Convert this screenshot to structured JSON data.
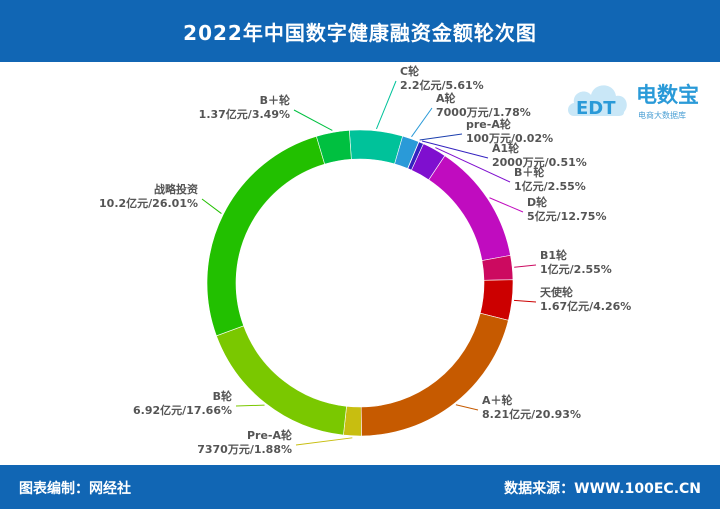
{
  "header": {
    "title": "2022年中国数字健康融资金额轮次图"
  },
  "footer": {
    "left": "图表编制：网经社",
    "right": "数据来源：WWW.100EC.CN"
  },
  "logo": {
    "name": "电数宝",
    "short": "EDT",
    "sub": "电商大数据库"
  },
  "colors": {
    "header_bg": "#1166b4",
    "label": "#555555"
  },
  "chart_data": {
    "type": "pie",
    "donut": true,
    "title": "2022年中国数字健康融资金额轮次图",
    "slices": [
      {
        "name": "C轮",
        "amount": "2.2亿元",
        "percent": 5.61,
        "pct_label": "5.61%",
        "color": "#00c29a"
      },
      {
        "name": "A轮",
        "amount": "7000万元",
        "percent": 1.78,
        "pct_label": "1.78%",
        "color": "#2a9ad8"
      },
      {
        "name": "pre-A轮",
        "amount": "100万元",
        "percent": 0.02,
        "pct_label": "0.02%",
        "color": "#1c3fae"
      },
      {
        "name": "A1轮",
        "amount": "2000万元",
        "percent": 0.51,
        "pct_label": "0.51%",
        "color": "#3523c0"
      },
      {
        "name": "B＋轮",
        "amount": "1亿元",
        "percent": 2.55,
        "pct_label": "2.55%",
        "color": "#7f0fcf"
      },
      {
        "name": "D轮",
        "amount": "5亿元",
        "percent": 12.75,
        "pct_label": "12.75%",
        "color": "#c00cbf"
      },
      {
        "name": "B1轮",
        "amount": "1亿元",
        "percent": 2.55,
        "pct_label": "2.55%",
        "color": "#cc0a60"
      },
      {
        "name": "天使轮",
        "amount": "1.67亿元",
        "percent": 4.26,
        "pct_label": "4.26%",
        "color": "#cc0000"
      },
      {
        "name": "A＋轮",
        "amount": "8.21亿元",
        "percent": 20.93,
        "pct_label": "20.93%",
        "color": "#c65a00"
      },
      {
        "name": "Pre-A轮",
        "amount": "7370万元",
        "percent": 1.88,
        "pct_label": "1.88%",
        "color": "#c8be10"
      },
      {
        "name": "B轮",
        "amount": "6.92亿元",
        "percent": 17.66,
        "pct_label": "17.66%",
        "color": "#7ac800"
      },
      {
        "name": "战略投资",
        "amount": "10.2亿元",
        "percent": 26.01,
        "pct_label": "26.01%",
        "color": "#22c000"
      },
      {
        "name": "B＋轮",
        "amount": "1.37亿元",
        "percent": 3.49,
        "pct_label": "3.49%",
        "color": "#00c040"
      }
    ]
  }
}
